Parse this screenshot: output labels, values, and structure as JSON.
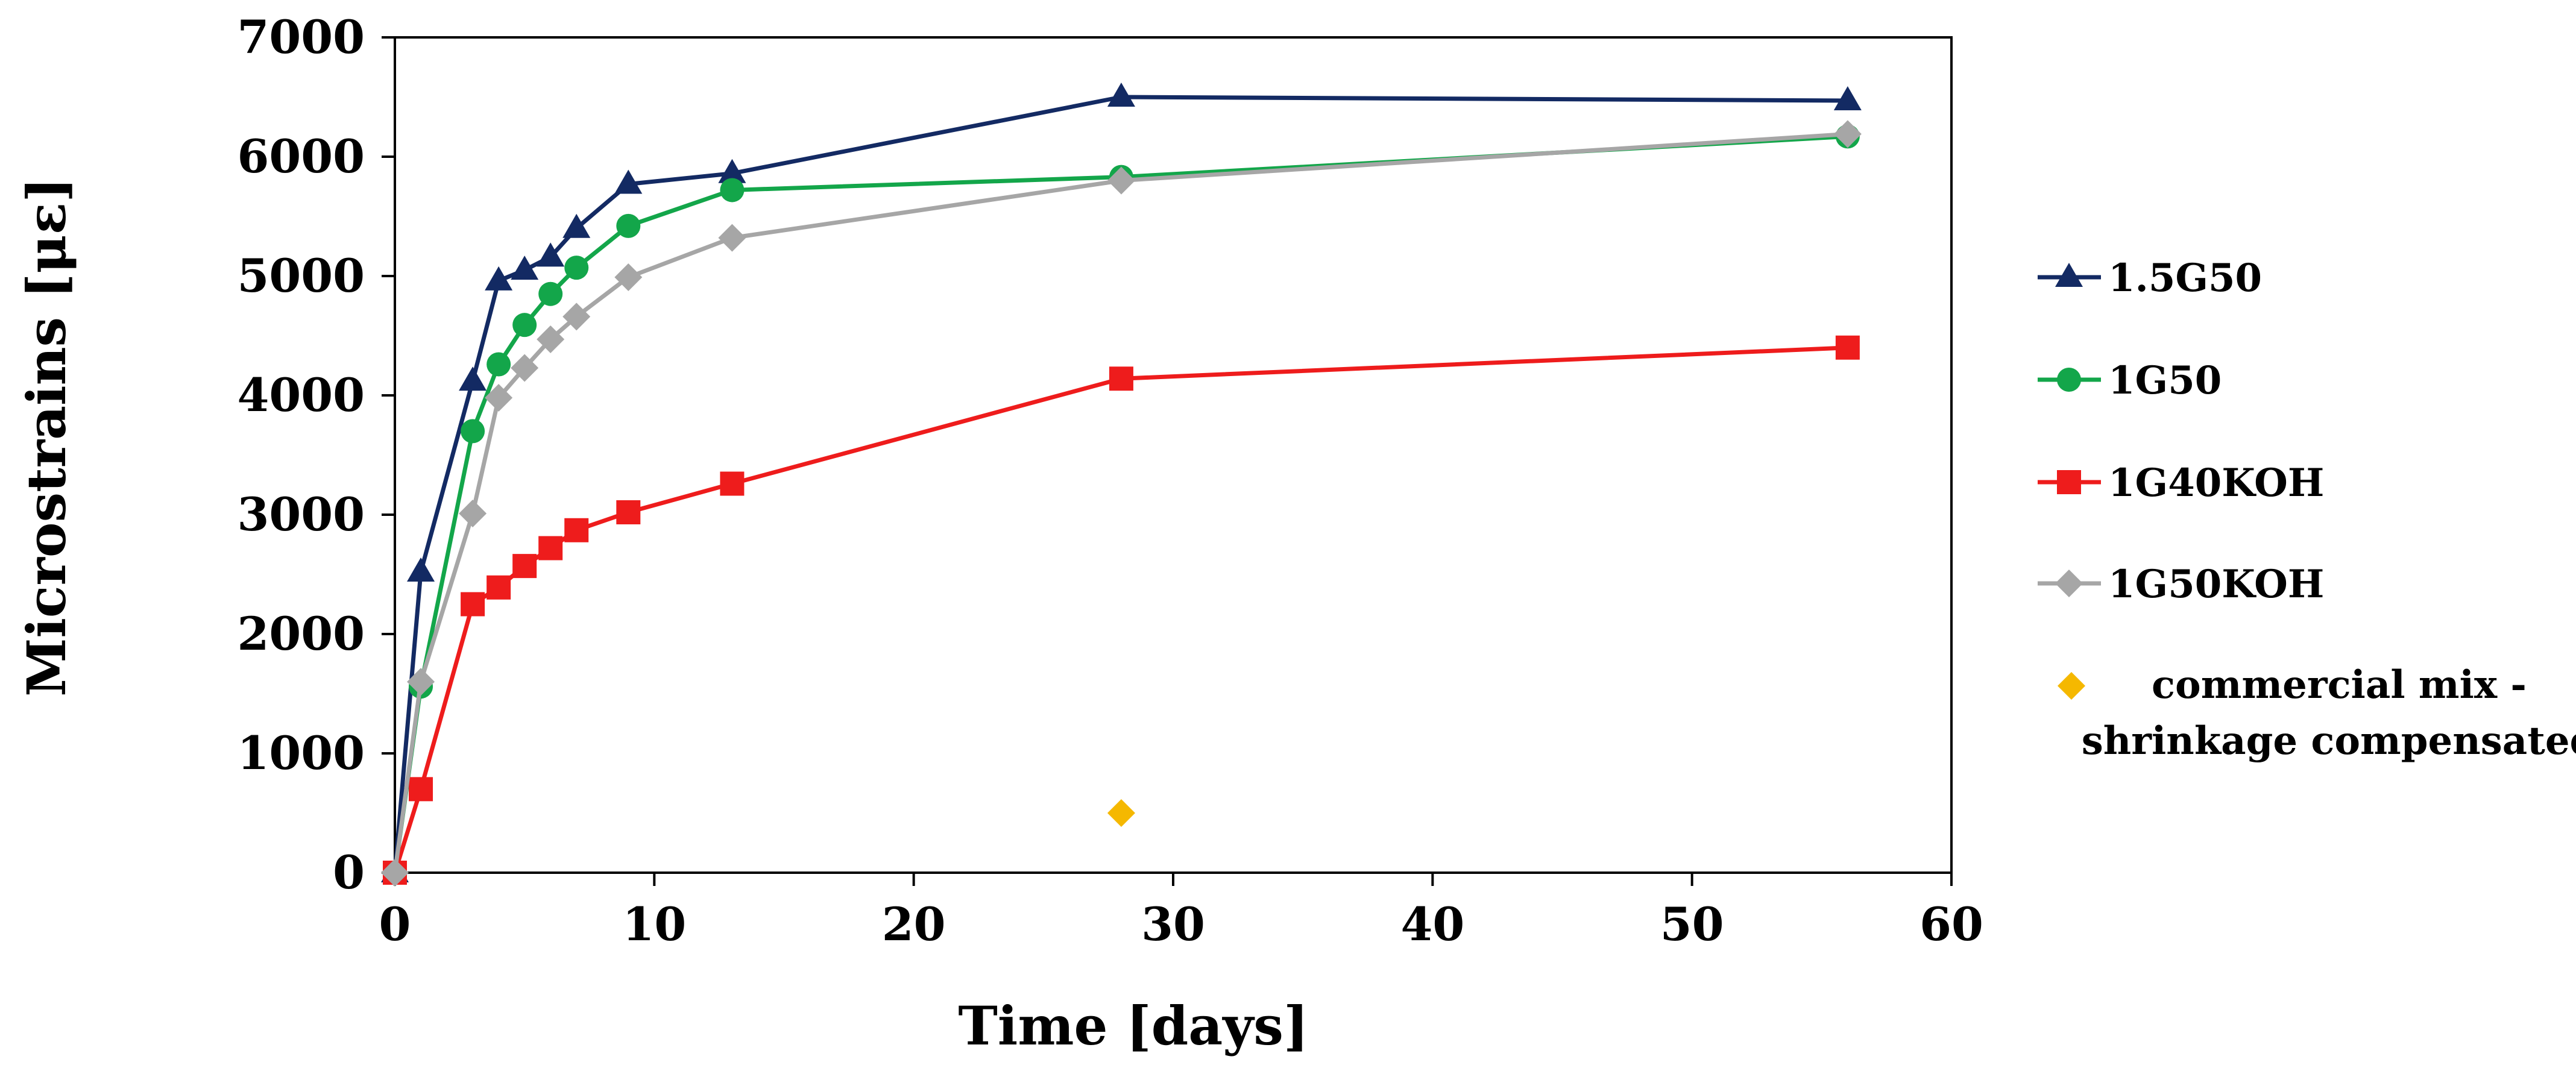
{
  "chart_data": {
    "type": "line",
    "title": "",
    "xlabel": "Time [days]",
    "ylabel": "Microstrains [με]",
    "xlim": [
      0,
      60
    ],
    "ylim": [
      0,
      7000
    ],
    "xticks": [
      0,
      10,
      20,
      30,
      40,
      50,
      60
    ],
    "yticks": [
      0,
      1000,
      2000,
      3000,
      4000,
      5000,
      6000,
      7000
    ],
    "grid": false,
    "legend_position": "right",
    "series": [
      {
        "name": "1.5G50",
        "color": "#132a63",
        "marker": "triangle",
        "line": true,
        "x": [
          0,
          1,
          3,
          4,
          5,
          6,
          7,
          9,
          13,
          28,
          56
        ],
        "y": [
          0,
          2520,
          4120,
          4960,
          5050,
          5160,
          5400,
          5770,
          5860,
          6500,
          6470
        ]
      },
      {
        "name": "1G50",
        "color": "#13a64a",
        "marker": "circle",
        "line": true,
        "x": [
          0,
          1,
          3,
          4,
          5,
          6,
          7,
          9,
          13,
          28,
          56
        ],
        "y": [
          0,
          1560,
          3700,
          4260,
          4590,
          4850,
          5070,
          5420,
          5720,
          5830,
          6170
        ]
      },
      {
        "name": "1G40KOH",
        "color": "#ee1c1c",
        "marker": "square",
        "line": true,
        "x": [
          0,
          1,
          3,
          4,
          5,
          6,
          7,
          9,
          13,
          28,
          56
        ],
        "y": [
          0,
          700,
          2250,
          2390,
          2570,
          2720,
          2870,
          3020,
          3260,
          4140,
          4400
        ]
      },
      {
        "name": "1G50KOH",
        "color": "#a6a6a6",
        "marker": "diamond",
        "line": true,
        "x": [
          0,
          1,
          3,
          4,
          5,
          6,
          7,
          9,
          13,
          28,
          56
        ],
        "y": [
          0,
          1600,
          3010,
          3980,
          4230,
          4470,
          4660,
          4990,
          5320,
          5800,
          6190
        ]
      },
      {
        "name": "commercial mix - shrinkage compensated",
        "color": "#f5b800",
        "marker": "diamond",
        "line": false,
        "x": [
          28
        ],
        "y": [
          500
        ]
      }
    ]
  },
  "legend": {
    "labels": [
      "1.5G50",
      "1G50",
      "1G40KOH",
      "1G50KOH"
    ],
    "commercial_line1": "commercial mix -",
    "commercial_line2": "shrinkage compensated"
  }
}
